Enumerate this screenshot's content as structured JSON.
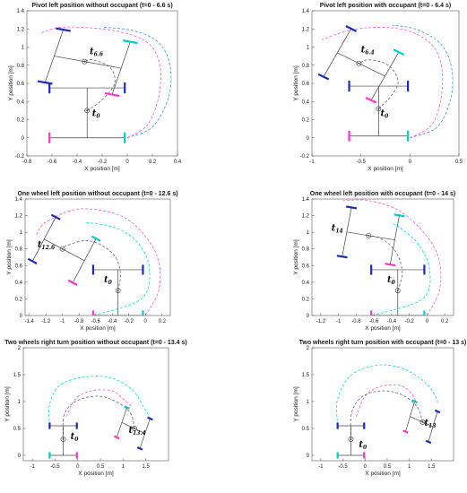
{
  "chart_data": [
    {
      "type": "line",
      "title": "Pivot left position without occupant (t=0 - 6.6 s)",
      "xlabel": "X position [m]",
      "ylabel": "Y position [m]",
      "xlim": [
        -0.8,
        0.4
      ],
      "ylim": [
        -0.2,
        1.4
      ],
      "xticks": [
        -0.8,
        -0.6,
        -0.4,
        -0.2,
        0,
        0.2,
        0.4
      ],
      "yticks": [
        -0.2,
        0,
        0.2,
        0.4,
        0.6,
        0.8,
        1,
        1.2,
        1.4
      ],
      "xtick_labels": [
        "-0.8",
        "-0.6",
        "-0.4",
        "-0.2",
        "0",
        "0.2",
        "0.4"
      ],
      "ytick_labels": [
        "-0.2",
        "0",
        "0.2",
        "0.4",
        "0.6",
        "0.8",
        "1",
        "1.2",
        "1.4"
      ],
      "annotations": [
        {
          "base": "t",
          "sub": "0",
          "x": -0.28,
          "y": 0.24
        },
        {
          "base": "t",
          "sub": "6.6",
          "x": -0.3,
          "y": 0.92
        }
      ],
      "paths": [
        {
          "color": "#3399ff",
          "points": [
            [
              0,
              0
            ],
            [
              0.2,
              0.12
            ],
            [
              0.33,
              0.45
            ],
            [
              0.34,
              0.8
            ],
            [
              0.25,
              1.05
            ],
            [
              0.05,
              1.18
            ],
            [
              -0.2,
              1.22
            ]
          ]
        },
        {
          "color": "#ff55dd",
          "points": [
            [
              0,
              0
            ],
            [
              0.16,
              0.14
            ],
            [
              0.25,
              0.45
            ],
            [
              0.26,
              0.8
            ],
            [
              0.16,
              1.05
            ],
            [
              -0.1,
              1.18
            ],
            [
              -0.5,
              1.22
            ],
            [
              -0.7,
              1.15
            ]
          ]
        },
        {
          "color": "#00dddd",
          "points": [
            [
              -0.62,
              0
            ],
            [
              -0.62,
              0
            ],
            [
              -0.62,
              0
            ]
          ]
        },
        {
          "color": "#666688",
          "points": [
            [
              -0.32,
              0.3
            ],
            [
              -0.2,
              0.42
            ],
            [
              -0.1,
              0.6
            ],
            [
              -0.14,
              0.78
            ],
            [
              -0.28,
              0.86
            ],
            [
              -0.34,
              0.84
            ]
          ]
        }
      ],
      "robots": [
        {
          "center": [
            -0.32,
            0.3
          ],
          "heading_deg": 0,
          "front_color": "#ff33cc",
          "rear_color": "#00cccc",
          "guide_color": "#1a2bbb"
        },
        {
          "center": [
            -0.34,
            0.84
          ],
          "heading_deg": 76,
          "front_color": "#ff33cc",
          "rear_color": "#00cccc",
          "guide_color": "#1a2bbb"
        }
      ]
    },
    {
      "type": "line",
      "title": "Pivot left position with occupant (t=0 - 6.4 s)",
      "xlabel": "X position [m]",
      "ylabel": "Y position [m]",
      "xlim": [
        -1,
        0.5
      ],
      "ylim": [
        -0.2,
        1.4
      ],
      "xticks": [
        -1,
        -0.5,
        0,
        0.5
      ],
      "yticks": [
        -0.2,
        0,
        0.2,
        0.4,
        0.6,
        0.8,
        1,
        1.2,
        1.4
      ],
      "xtick_labels": [
        "-1",
        "-0.5",
        "0",
        "0.5"
      ],
      "ytick_labels": [
        "-0.2",
        "0",
        "0.2",
        "0.4",
        "0.6",
        "0.8",
        "1",
        "1.2",
        "1.4"
      ],
      "annotations": [
        {
          "base": "t",
          "sub": "0",
          "x": -0.3,
          "y": 0.24
        },
        {
          "base": "t",
          "sub": "6.4",
          "x": -0.5,
          "y": 0.94
        }
      ],
      "paths": [
        {
          "color": "#3399ff",
          "points": [
            [
              0,
              0
            ],
            [
              0.28,
              0.12
            ],
            [
              0.42,
              0.45
            ],
            [
              0.42,
              0.8
            ],
            [
              0.3,
              1.05
            ],
            [
              0.05,
              1.2
            ],
            [
              -0.18,
              1.24
            ]
          ]
        },
        {
          "color": "#ff55dd",
          "points": [
            [
              0,
              0
            ],
            [
              0.22,
              0.14
            ],
            [
              0.32,
              0.45
            ],
            [
              0.32,
              0.8
            ],
            [
              0.2,
              1.05
            ],
            [
              -0.1,
              1.2
            ],
            [
              -0.55,
              1.2
            ],
            [
              -0.9,
              1.08
            ]
          ]
        },
        {
          "color": "#666688",
          "points": [
            [
              -0.32,
              0.32
            ],
            [
              -0.2,
              0.45
            ],
            [
              -0.12,
              0.62
            ],
            [
              -0.22,
              0.8
            ],
            [
              -0.42,
              0.86
            ],
            [
              -0.52,
              0.82
            ]
          ]
        }
      ],
      "robots": [
        {
          "center": [
            -0.32,
            0.32
          ],
          "heading_deg": 0,
          "front_color": "#ff33cc",
          "rear_color": "#00cccc",
          "guide_color": "#1a2bbb"
        },
        {
          "center": [
            -0.52,
            0.82
          ],
          "heading_deg": 62,
          "front_color": "#ff33cc",
          "rear_color": "#00cccc",
          "guide_color": "#1a2bbb"
        }
      ]
    },
    {
      "type": "line",
      "title": "One wheel left position without occupant (t=0 - 12.6 s)",
      "xlabel": "X position [m]",
      "ylabel": "Y position [m]",
      "xlim": [
        -1.45,
        0.3
      ],
      "ylim": [
        0,
        1.4
      ],
      "xticks": [
        -1.4,
        -1.2,
        -1,
        -0.8,
        -0.6,
        -0.4,
        -0.2,
        0,
        0.2
      ],
      "yticks": [
        0,
        0.2,
        0.4,
        0.6,
        0.8,
        1,
        1.2,
        1.4
      ],
      "xtick_labels": [
        "-1.4",
        "-1.2",
        "-1",
        "-0.8",
        "-0.6",
        "-0.4",
        "-0.2",
        "0",
        "0.2"
      ],
      "ytick_labels": [
        "0",
        "0.2",
        "0.4",
        "0.6",
        "0.8",
        "1",
        "1.2",
        "1.4"
      ],
      "annotations": [
        {
          "base": "t",
          "sub": "0",
          "x": -0.5,
          "y": 0.4
        },
        {
          "base": "t",
          "sub": "12.6",
          "x": -1.3,
          "y": 0.82
        }
      ],
      "paths": [
        {
          "color": "#ff55dd",
          "points": [
            [
              0,
              0
            ],
            [
              0.16,
              0.3
            ],
            [
              0.16,
              0.65
            ],
            [
              0,
              0.95
            ],
            [
              -0.3,
              1.2
            ],
            [
              -0.8,
              1.28
            ],
            [
              -1.2,
              1.12
            ],
            [
              -1.32,
              0.96
            ]
          ]
        },
        {
          "color": "#00dddd",
          "points": [
            [
              -0.62,
              0
            ],
            [
              -0.05,
              0.2
            ],
            [
              0.05,
              0.55
            ],
            [
              -0.08,
              0.86
            ],
            [
              -0.35,
              1.05
            ],
            [
              -0.72,
              1.12
            ]
          ]
        },
        {
          "color": "#666688",
          "points": [
            [
              -0.33,
              0.3
            ],
            [
              -0.3,
              0.5
            ],
            [
              -0.36,
              0.7
            ],
            [
              -0.52,
              0.84
            ],
            [
              -0.72,
              0.9
            ],
            [
              -0.95,
              0.84
            ],
            [
              -1.0,
              0.8
            ]
          ]
        }
      ],
      "robots": [
        {
          "center": [
            -0.33,
            0.3
          ],
          "heading_deg": 0,
          "front_color": "#ff33cc",
          "rear_color": "#00cccc",
          "guide_color": "#1a2bbb"
        },
        {
          "center": [
            -1.0,
            0.8
          ],
          "heading_deg": 62,
          "front_color": "#ff33cc",
          "rear_color": "#00cccc",
          "guide_color": "#1a2bbb"
        }
      ]
    },
    {
      "type": "line",
      "title": "One wheel left position with occupant (t=0 - 14 s)",
      "xlabel": "X position [m]",
      "ylabel": "Y position [m]",
      "xlim": [
        -1.3,
        0.3
      ],
      "ylim": [
        0,
        1.4
      ],
      "xticks": [
        -1.2,
        -1,
        -0.8,
        -0.6,
        -0.4,
        -0.2,
        0,
        0.2
      ],
      "yticks": [
        0,
        0.2,
        0.4,
        0.6,
        0.8,
        1,
        1.2,
        1.4
      ],
      "xtick_labels": [
        "-1.2",
        "-1",
        "-0.8",
        "-0.6",
        "-0.4",
        "-0.2",
        "0",
        "0.2"
      ],
      "ytick_labels": [
        "0",
        "0.2",
        "0.4",
        "0.6",
        "0.8",
        "1",
        "1.2",
        "1.4"
      ],
      "annotations": [
        {
          "base": "t",
          "sub": "0",
          "x": -0.45,
          "y": 0.4
        },
        {
          "base": "t",
          "sub": "14",
          "x": -1.08,
          "y": 1.02
        }
      ],
      "paths": [
        {
          "color": "#ff55dd",
          "points": [
            [
              0,
              0
            ],
            [
              0.14,
              0.3
            ],
            [
              0.14,
              0.65
            ],
            [
              0,
              0.95
            ],
            [
              -0.3,
              1.25
            ],
            [
              -0.65,
              1.38
            ],
            [
              -0.95,
              1.38
            ]
          ]
        },
        {
          "color": "#00dddd",
          "points": [
            [
              -0.62,
              0
            ],
            [
              -0.05,
              0.2
            ],
            [
              0.03,
              0.55
            ],
            [
              -0.1,
              0.86
            ],
            [
              -0.3,
              1.05
            ],
            [
              -0.38,
              1.1
            ]
          ]
        },
        {
          "color": "#666688",
          "points": [
            [
              -0.33,
              0.3
            ],
            [
              -0.28,
              0.5
            ],
            [
              -0.32,
              0.7
            ],
            [
              -0.42,
              0.85
            ],
            [
              -0.56,
              0.94
            ],
            [
              -0.66,
              0.96
            ]
          ]
        }
      ],
      "robots": [
        {
          "center": [
            -0.33,
            0.3
          ],
          "heading_deg": 0,
          "front_color": "#ff33cc",
          "rear_color": "#00cccc",
          "guide_color": "#1a2bbb"
        },
        {
          "center": [
            -0.66,
            0.96
          ],
          "heading_deg": 80,
          "front_color": "#ff33cc",
          "rear_color": "#00cccc",
          "guide_color": "#1a2bbb"
        }
      ]
    },
    {
      "type": "line",
      "title": "Two wheels right turn position without occupant (t=0 - 13.4 s)",
      "xlabel": "X position [m]",
      "ylabel": "Y position [m]",
      "xlim": [
        -1.2,
        2
      ],
      "ylim": [
        -0.1,
        2
      ],
      "xticks": [
        -1,
        -0.5,
        0,
        0.5,
        1,
        1.5
      ],
      "yticks": [
        0,
        0.5,
        1,
        1.5,
        2
      ],
      "xtick_labels": [
        "-1",
        "-0.5",
        "0",
        "0.5",
        "1",
        "1.5"
      ],
      "ytick_labels": [
        "0",
        "0.5",
        "1",
        "1.5",
        "2"
      ],
      "annotations": [
        {
          "base": "t",
          "sub": "0",
          "x": -0.16,
          "y": 0.3
        },
        {
          "base": "t",
          "sub": "13.4",
          "x": 1.12,
          "y": 0.42
        }
      ],
      "paths": [
        {
          "color": "#00dddd",
          "points": [
            [
              -0.62,
              0.55
            ],
            [
              -0.62,
              0.95
            ],
            [
              -0.4,
              1.3
            ],
            [
              0.1,
              1.45
            ],
            [
              0.7,
              1.45
            ],
            [
              1.2,
              1.22
            ],
            [
              1.45,
              0.9
            ],
            [
              1.58,
              0.72
            ]
          ]
        },
        {
          "color": "#ff55dd",
          "points": [
            [
              -0.25,
              0.72
            ],
            [
              -0.05,
              1.05
            ],
            [
              0.3,
              1.2
            ],
            [
              0.75,
              1.2
            ],
            [
              1.0,
              1.05
            ],
            [
              1.2,
              0.9
            ]
          ]
        },
        {
          "color": "#666688",
          "points": [
            [
              -0.32,
              0.3
            ],
            [
              -0.3,
              0.75
            ],
            [
              -0.05,
              1.0
            ],
            [
              0.4,
              1.1
            ],
            [
              0.8,
              1.02
            ],
            [
              1.15,
              0.8
            ],
            [
              1.25,
              0.5
            ]
          ]
        }
      ],
      "robots": [
        {
          "center": [
            -0.32,
            0.3
          ],
          "heading_deg": 0,
          "front_color": "#00cccc",
          "rear_color": "#ff33cc",
          "guide_color": "#1a2bbb"
        },
        {
          "center": [
            1.25,
            0.5
          ],
          "heading_deg": -112,
          "front_color": "#00cccc",
          "rear_color": "#ff33cc",
          "guide_color": "#1a2bbb"
        }
      ]
    },
    {
      "type": "line",
      "title": "Two wheels right turn position with occupant (t=0 - 13 s)",
      "xlabel": "X position [m]",
      "ylabel": "Y position [m]",
      "xlim": [
        -1.2,
        2
      ],
      "ylim": [
        -0.1,
        2
      ],
      "xticks": [
        -1,
        -0.5,
        0,
        0.5,
        1,
        1.5
      ],
      "yticks": [
        0,
        0.5,
        1,
        1.5,
        2
      ],
      "xtick_labels": [
        "-1",
        "-0.5",
        "0",
        "0.5",
        "1",
        "1.5"
      ],
      "ytick_labels": [
        "0",
        "0.5",
        "1",
        "1.5",
        "2"
      ],
      "annotations": [
        {
          "base": "t",
          "sub": "0",
          "x": -0.14,
          "y": 0.15
        },
        {
          "base": "t",
          "sub": "13",
          "x": 1.34,
          "y": 0.55
        }
      ],
      "paths": [
        {
          "color": "#00dddd",
          "points": [
            [
              -0.62,
              0.55
            ],
            [
              -0.62,
              1.05
            ],
            [
              -0.3,
              1.5
            ],
            [
              0.3,
              1.68
            ],
            [
              0.9,
              1.6
            ],
            [
              1.4,
              1.32
            ],
            [
              1.62,
              1.05
            ],
            [
              1.62,
              0.95
            ]
          ]
        },
        {
          "color": "#ff55dd",
          "points": [
            [
              -0.2,
              0.72
            ],
            [
              0.0,
              1.1
            ],
            [
              0.35,
              1.28
            ],
            [
              0.8,
              1.3
            ],
            [
              1.05,
              1.15
            ],
            [
              1.15,
              1.0
            ]
          ]
        },
        {
          "color": "#666688",
          "points": [
            [
              -0.32,
              0.3
            ],
            [
              -0.3,
              0.8
            ],
            [
              -0.05,
              1.1
            ],
            [
              0.4,
              1.2
            ],
            [
              0.85,
              1.12
            ],
            [
              1.18,
              0.9
            ],
            [
              1.3,
              0.62
            ]
          ]
        }
      ],
      "robots": [
        {
          "center": [
            -0.32,
            0.3
          ],
          "heading_deg": 0,
          "front_color": "#00cccc",
          "rear_color": "#ff33cc",
          "guide_color": "#1a2bbb"
        },
        {
          "center": [
            1.3,
            0.62
          ],
          "heading_deg": -110,
          "front_color": "#00cccc",
          "rear_color": "#ff33cc",
          "guide_color": "#1a2bbb"
        }
      ]
    }
  ]
}
